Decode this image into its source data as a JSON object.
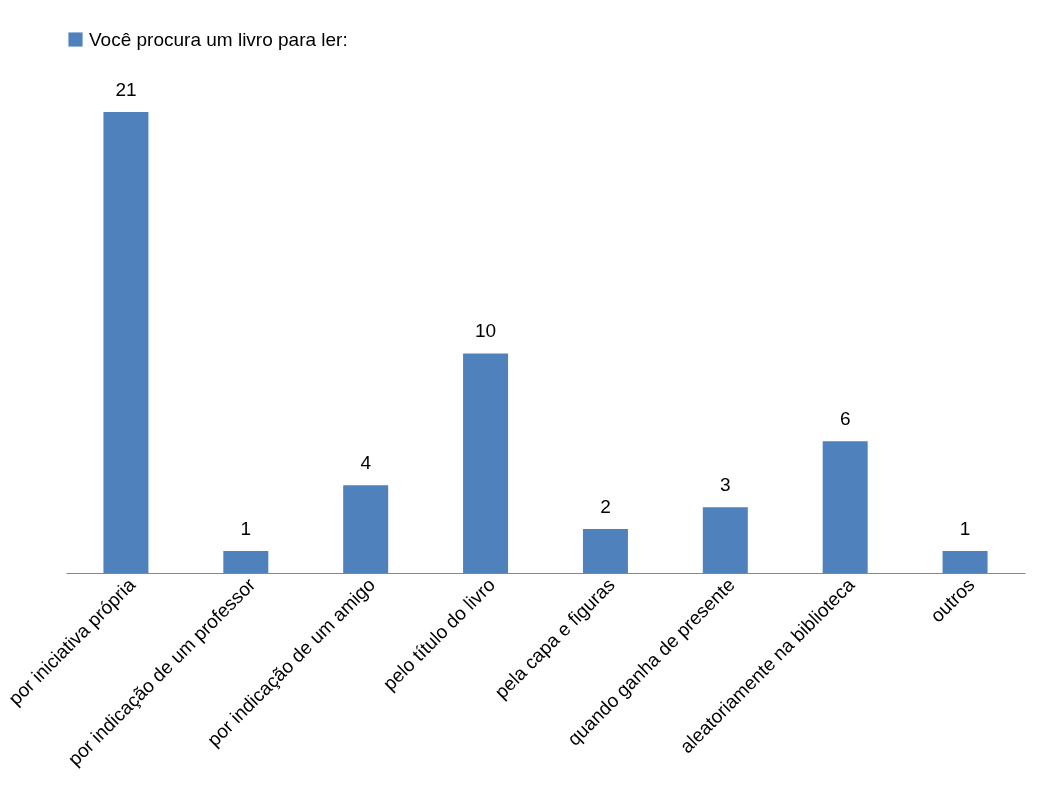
{
  "chart_data": {
    "type": "bar",
    "categories": [
      "por iniciativa própria",
      "por indicação de um professor",
      "por indicação de um amigo",
      "pelo título do livro",
      "pela capa e figuras",
      "quando ganha de presente",
      "aleatoriamente na biblioteca",
      "outros"
    ],
    "series": [
      {
        "name": "Você procura um livro para ler:",
        "color": "#4f81bd",
        "values": [
          21,
          1,
          4,
          10,
          2,
          3,
          6,
          1
        ]
      }
    ],
    "data_labels": true,
    "legend": "top",
    "tick_labels": "x",
    "grid": false
  }
}
